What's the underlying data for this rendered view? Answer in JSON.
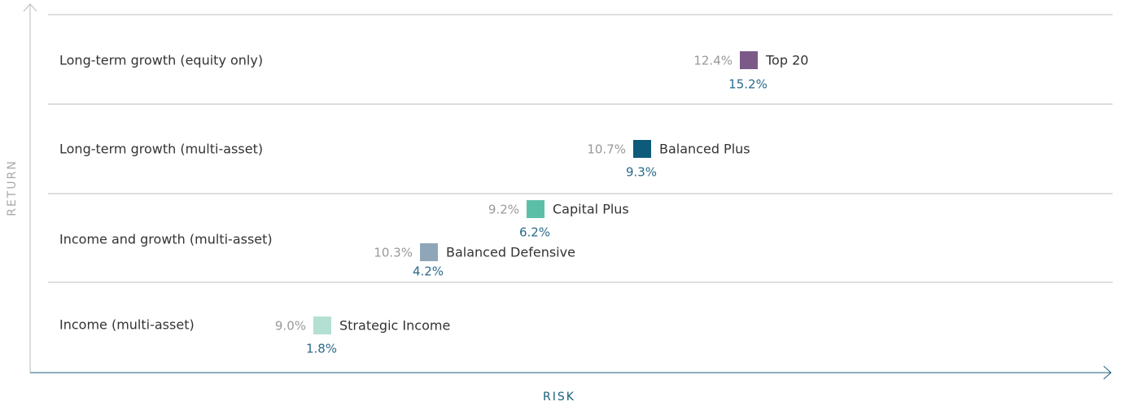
{
  "axes": {
    "y_label": "RETURN",
    "x_label": "RISK"
  },
  "rows": [
    "Long-term growth (equity only)",
    "Long-term growth (multi-asset)",
    "Income and growth (multi-asset)",
    "Income (multi-asset)"
  ],
  "funds": [
    {
      "name": "Top 20",
      "risk": "12.4%",
      "return": "15.2%",
      "color": "#7b5a87"
    },
    {
      "name": "Balanced Plus",
      "risk": "10.7%",
      "return": "9.3%",
      "color": "#0e5a7a"
    },
    {
      "name": "Capital Plus",
      "risk": "9.2%",
      "return": "6.2%",
      "color": "#5bbfa8"
    },
    {
      "name": "Balanced Defensive",
      "risk": "10.3%",
      "return": "4.2%",
      "color": "#8fa6b9"
    },
    {
      "name": "Strategic Income",
      "risk": "9.0%",
      "return": "1.8%",
      "color": "#b3e0d3"
    }
  ]
}
